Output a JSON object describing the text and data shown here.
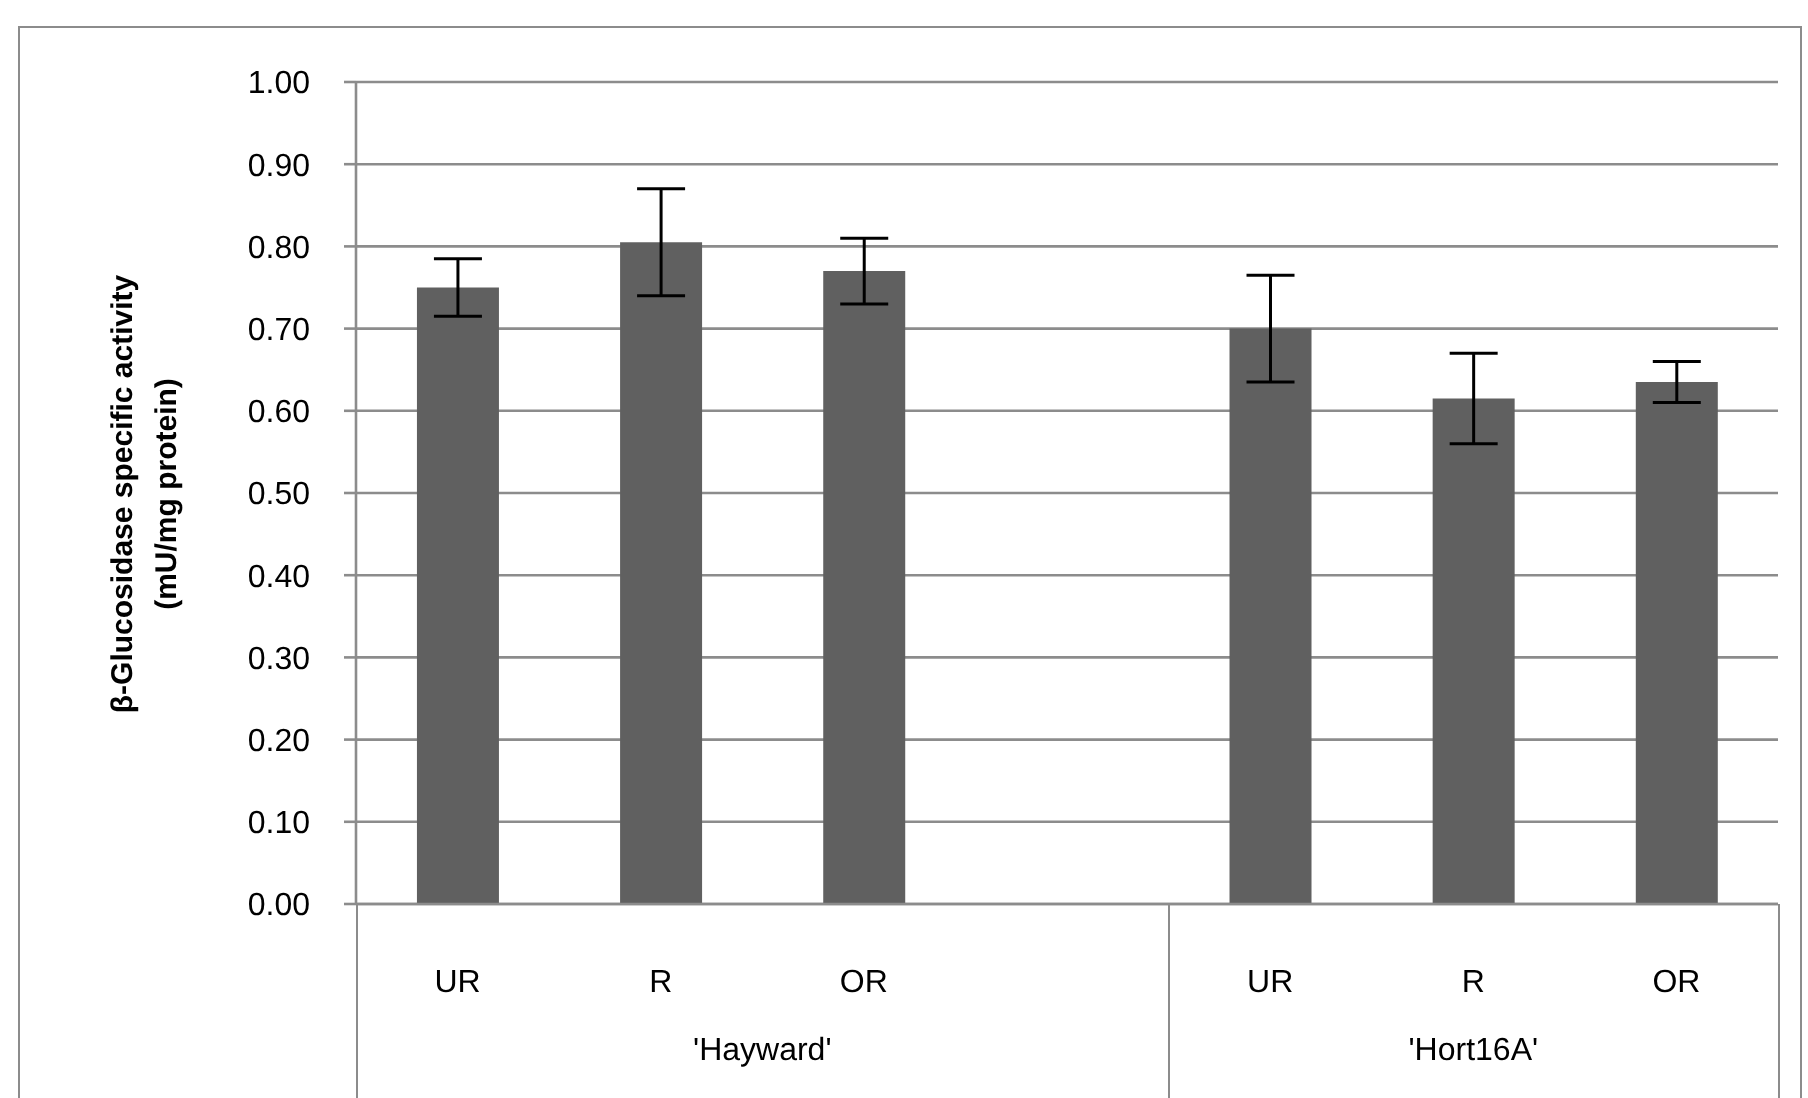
{
  "chart_data": {
    "type": "bar",
    "ylabel": "β-Glucosidase specific activity\n(mU/mg protein)",
    "categories": [
      "UR",
      "R",
      "OR",
      null,
      "UR",
      "R",
      "OR"
    ],
    "values": [
      0.75,
      0.805,
      0.77,
      null,
      0.7,
      0.615,
      0.635
    ],
    "errors": [
      0.035,
      0.065,
      0.04,
      null,
      0.065,
      0.055,
      0.025
    ],
    "color": "#606060",
    "ylim": [
      0,
      1
    ],
    "yticks": [
      {
        "value": 0,
        "label": "0.00"
      },
      {
        "value": 0.1,
        "label": "0.10"
      },
      {
        "value": 0.2,
        "label": "0.20"
      },
      {
        "value": 0.3,
        "label": "0.30"
      },
      {
        "value": 0.4,
        "label": "0.40"
      },
      {
        "value": 0.5,
        "label": "0.50"
      },
      {
        "value": 0.6,
        "label": "0.60"
      },
      {
        "value": 0.7,
        "label": "0.70"
      },
      {
        "value": 0.8,
        "label": "0.80"
      },
      {
        "value": 0.9,
        "label": "0.90"
      },
      {
        "value": 1,
        "label": "1.00"
      }
    ],
    "grid": "y",
    "annotations": [
      "'Hayward'",
      "'Hort16A'"
    ]
  }
}
